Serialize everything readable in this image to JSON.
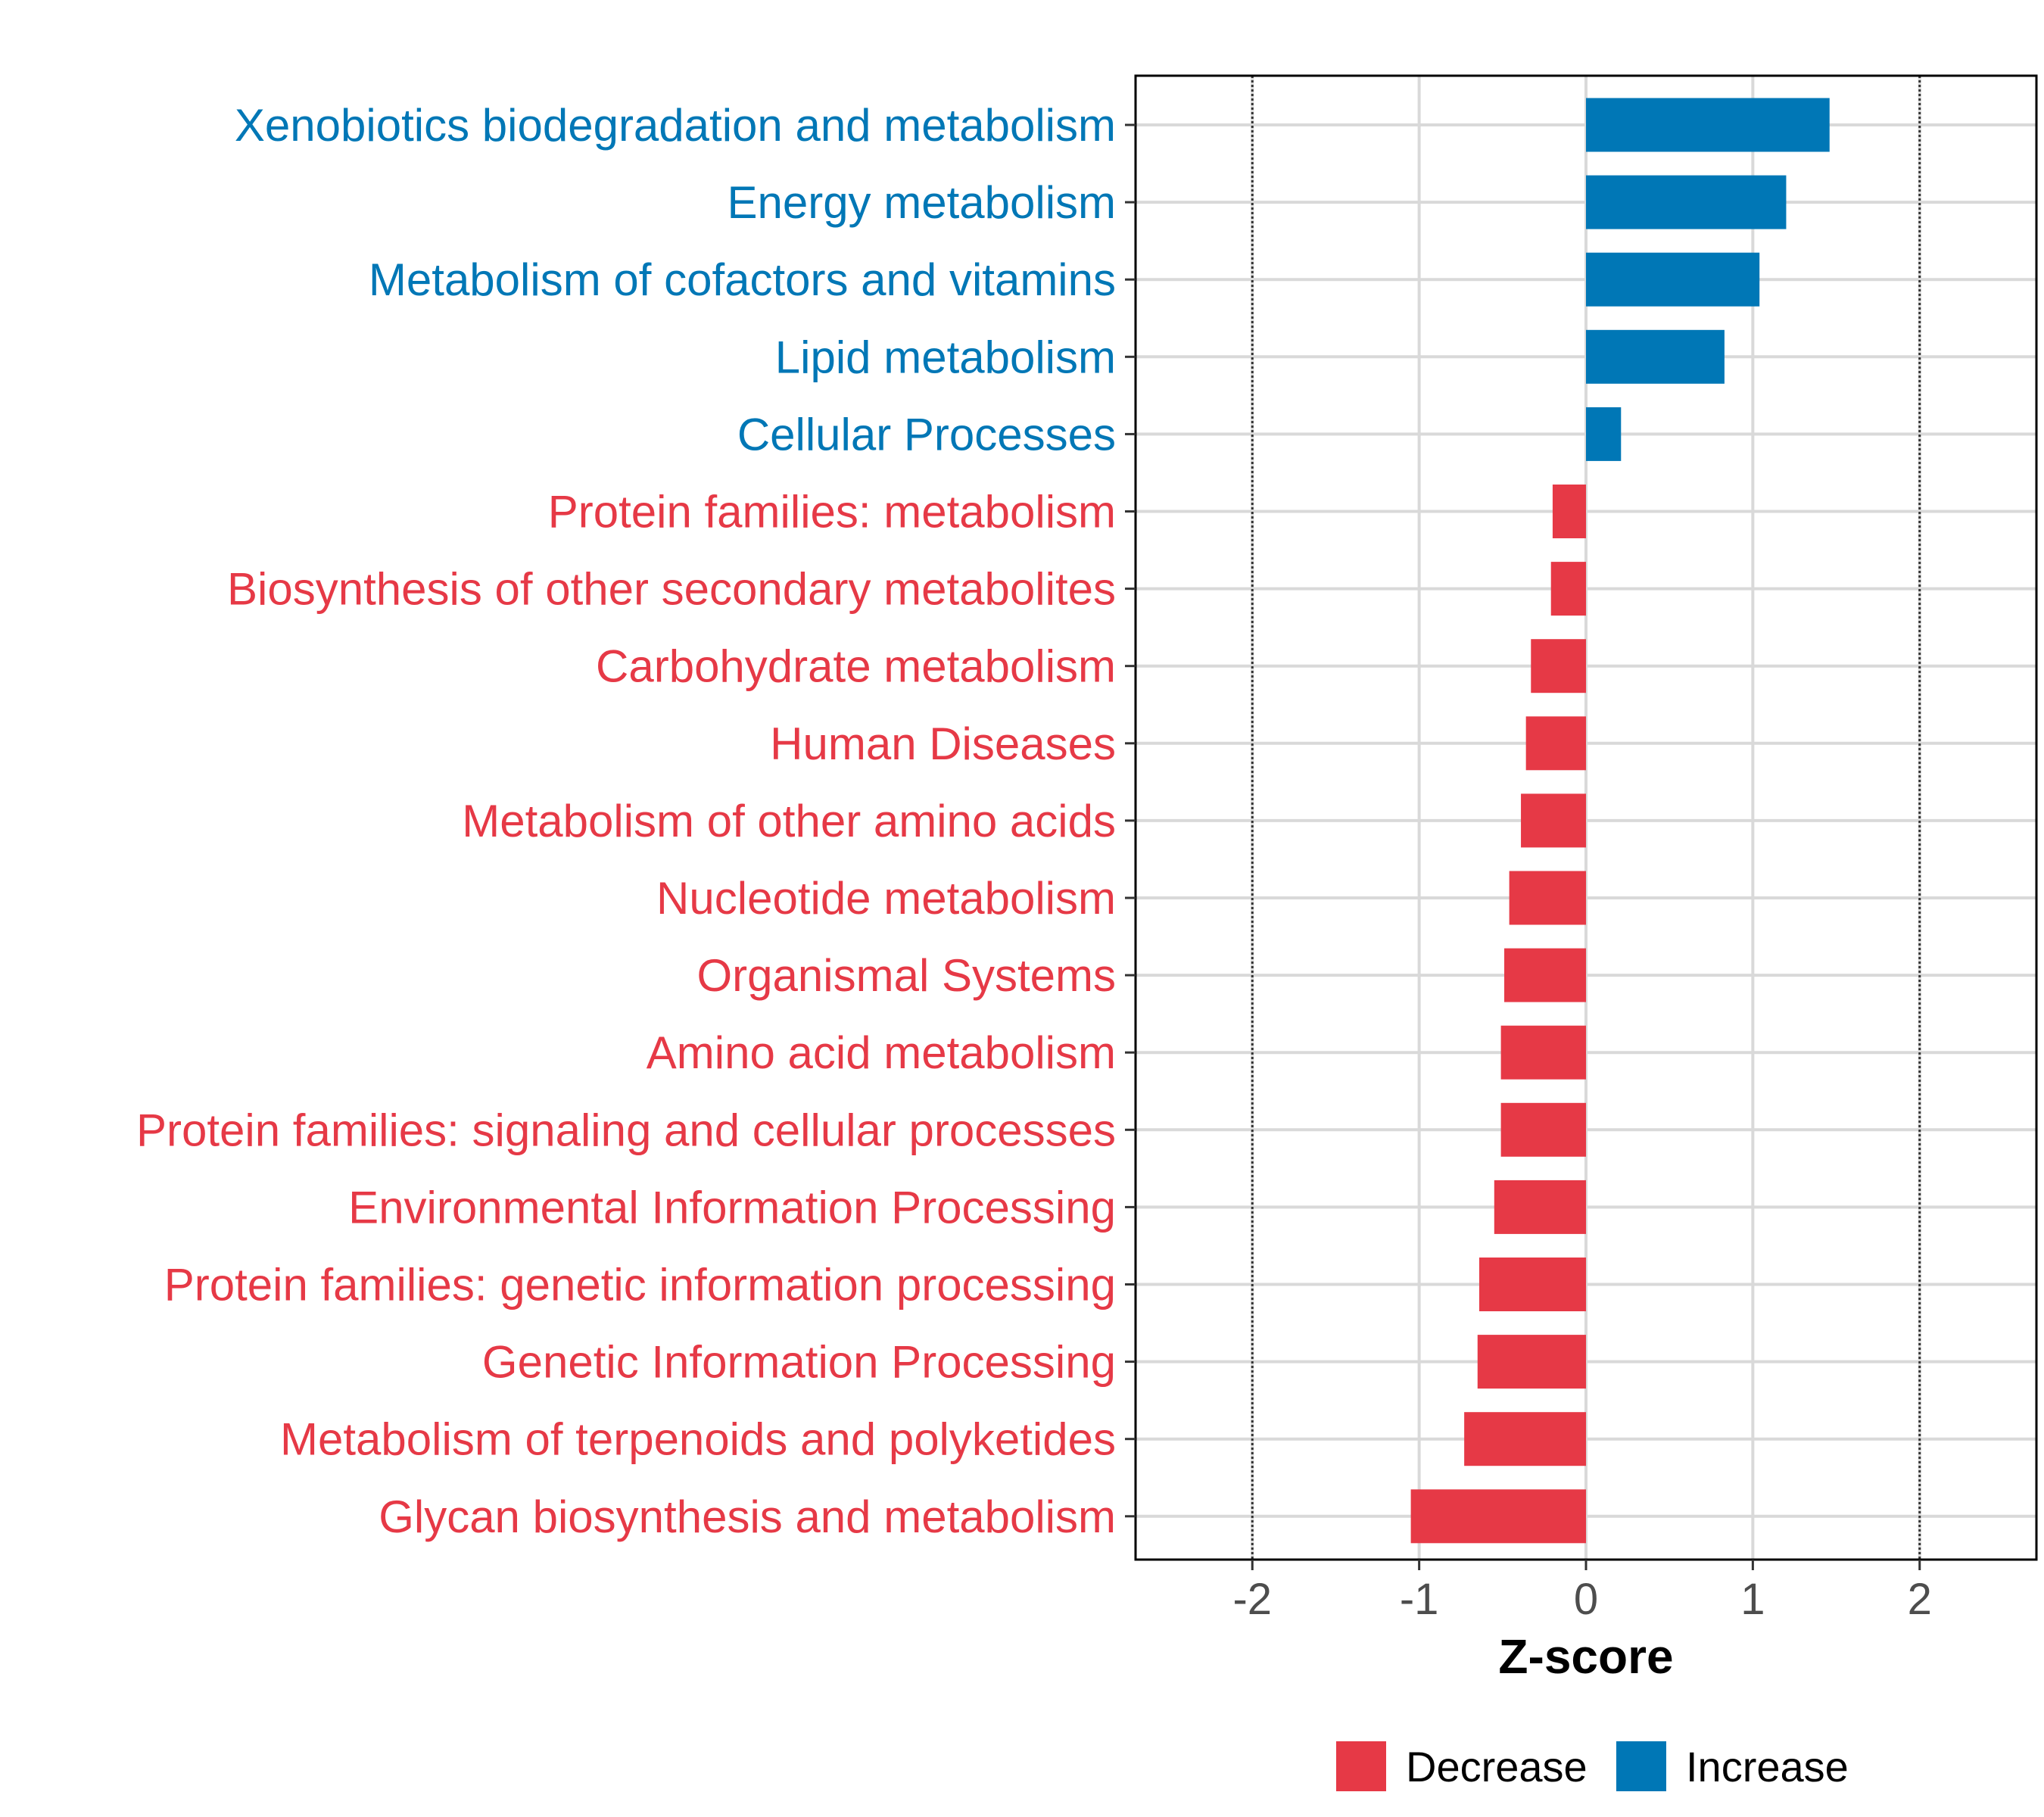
{
  "colors": {
    "decrease": "#e63946",
    "increase": "#0077b6",
    "grid": "#d9d9d9",
    "frame": "#000000"
  },
  "chart_data": {
    "type": "bar",
    "orientation": "horizontal",
    "categories": [
      "Xenobiotics biodegradation and metabolism",
      "Energy metabolism",
      "Metabolism of cofactors and vitamins",
      "Lipid metabolism",
      "Cellular Processes",
      "Protein families: metabolism",
      "Biosynthesis of other secondary metabolites",
      "Carbohydrate metabolism",
      "Human Diseases",
      "Metabolism of other amino acids",
      "Nucleotide metabolism",
      "Organismal Systems",
      "Amino acid metabolism",
      "Protein families: signaling and cellular processes",
      "Environmental Information Processing",
      "Protein families: genetic information processing",
      "Genetic Information Processing",
      "Metabolism of terpenoids and polyketides",
      "Glycan biosynthesis and metabolism"
    ],
    "values": [
      1.46,
      1.2,
      1.04,
      0.83,
      0.21,
      -0.2,
      -0.21,
      -0.33,
      -0.36,
      -0.39,
      -0.46,
      -0.49,
      -0.51,
      -0.51,
      -0.55,
      -0.64,
      -0.65,
      -0.73,
      -1.05
    ],
    "groups": [
      "Increase",
      "Increase",
      "Increase",
      "Increase",
      "Increase",
      "Decrease",
      "Decrease",
      "Decrease",
      "Decrease",
      "Decrease",
      "Decrease",
      "Decrease",
      "Decrease",
      "Decrease",
      "Decrease",
      "Decrease",
      "Decrease",
      "Decrease",
      "Decrease"
    ],
    "xlabel": "Z-score",
    "ylabel": "",
    "xlim": [
      -2.7,
      2.7
    ],
    "xticks": [
      -2,
      -1,
      0,
      1,
      2
    ],
    "xtick_labels": [
      "-2",
      "-1",
      "0",
      "1",
      "2"
    ],
    "reference_lines": [
      -2,
      2
    ],
    "grid": true,
    "legend": {
      "position": "bottom",
      "entries": [
        {
          "label": "Decrease",
          "group": "Decrease"
        },
        {
          "label": "Increase",
          "group": "Increase"
        }
      ]
    }
  }
}
